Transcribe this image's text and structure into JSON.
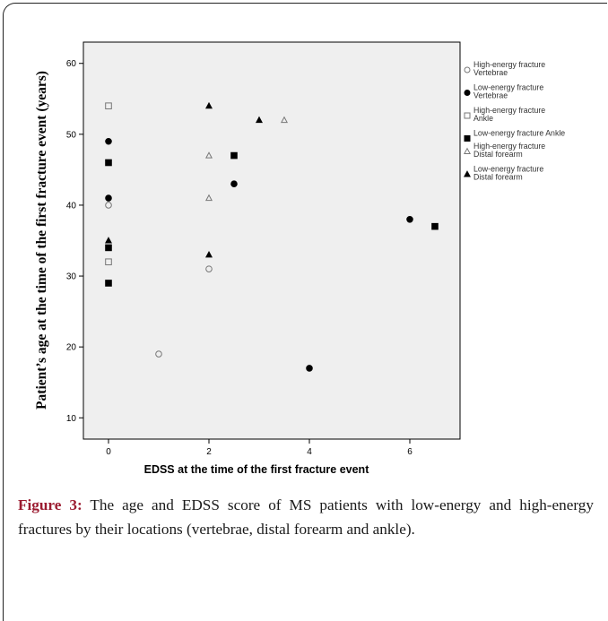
{
  "chart_data": {
    "type": "scatter",
    "title": "",
    "xlabel": "EDSS at the time of the first fracture event",
    "ylabel": "Patient’s age at the time of the first fracture event (years)",
    "xlim": [
      -0.5,
      7
    ],
    "ylim": [
      7,
      63
    ],
    "xticks": [
      0,
      2,
      4,
      6
    ],
    "yticks": [
      10,
      20,
      30,
      40,
      50,
      60
    ],
    "grid": false,
    "legend_position": "right",
    "plot_background": "#efefef",
    "series": [
      {
        "name": "High-energy fracture Vertebrae",
        "marker": "circle-open",
        "color": "#777777",
        "points": [
          [
            0,
            40
          ],
          [
            1,
            19
          ],
          [
            2,
            31
          ]
        ]
      },
      {
        "name": "Low-energy fracture Vertebrae",
        "marker": "circle-filled",
        "color": "#000000",
        "points": [
          [
            0,
            49
          ],
          [
            0,
            41
          ],
          [
            2.5,
            43
          ],
          [
            4,
            17
          ],
          [
            6,
            38
          ]
        ]
      },
      {
        "name": "High-energy fracture Ankle",
        "marker": "square-open",
        "color": "#777777",
        "points": [
          [
            0,
            54
          ],
          [
            0,
            32
          ]
        ]
      },
      {
        "name": "Low-energy fracture Ankle",
        "marker": "square-filled",
        "color": "#000000",
        "points": [
          [
            0,
            46
          ],
          [
            0,
            34
          ],
          [
            0,
            29
          ],
          [
            2.5,
            47
          ],
          [
            6.5,
            37
          ]
        ]
      },
      {
        "name": "High-energy fracture Distal forearm",
        "marker": "triangle-open",
        "color": "#777777",
        "points": [
          [
            2,
            47
          ],
          [
            2,
            41
          ],
          [
            3.5,
            52
          ]
        ]
      },
      {
        "name": "Low-energy fracture Distal forearm",
        "marker": "triangle-filled",
        "color": "#000000",
        "points": [
          [
            0,
            35
          ],
          [
            2,
            54
          ],
          [
            2,
            33
          ],
          [
            3,
            52
          ]
        ]
      }
    ]
  },
  "caption": {
    "label": "Figure 3:",
    "text": " The age and EDSS score of MS patients with low-energy and high-energy fractures by their locations (vertebrae, distal forearm and ankle)."
  }
}
